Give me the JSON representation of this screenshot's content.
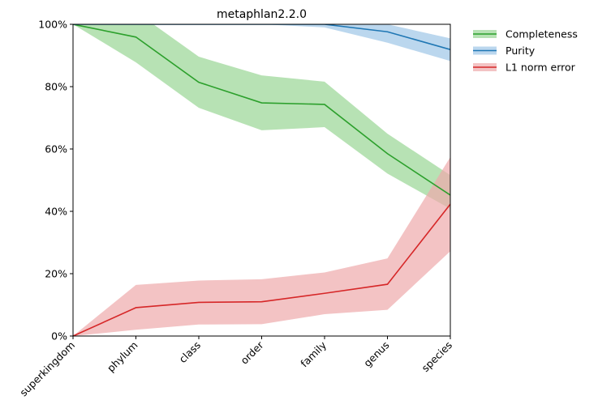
{
  "chart_data": {
    "type": "line",
    "title": "metaphlan2.2.0",
    "xlabel": "",
    "ylabel": "",
    "categories": [
      "superkingdom",
      "phylum",
      "class",
      "order",
      "family",
      "genus",
      "species"
    ],
    "ylim": [
      0,
      100
    ],
    "y_ticks": [
      "0%",
      "20%",
      "40%",
      "60%",
      "80%",
      "100%"
    ],
    "grid": false,
    "legend_placement": "outside right, top",
    "series": [
      {
        "name": "Completeness",
        "color": "#2ca02c",
        "band_color": "#98d594",
        "values": [
          100,
          95.9,
          81.4,
          74.8,
          74.3,
          58.5,
          45.2
        ],
        "upper": [
          100,
          104,
          89.6,
          83.6,
          81.6,
          64.9,
          51.6
        ],
        "lower": [
          100,
          87.8,
          73.2,
          66.0,
          67.0,
          52.1,
          40.8
        ]
      },
      {
        "name": "Purity",
        "color": "#1f77b4",
        "band_color": "#9ec6e7",
        "values": [
          100,
          100,
          100,
          100,
          100,
          97.6,
          91.9
        ],
        "upper": [
          100,
          100,
          100,
          100,
          100,
          100,
          95.5
        ],
        "lower": [
          100,
          100,
          100,
          100,
          99.0,
          94.1,
          88.2
        ]
      },
      {
        "name": "L1 norm error",
        "color": "#d62728",
        "band_color": "#eeaaab",
        "values": [
          0,
          9.1,
          10.8,
          11.0,
          13.7,
          16.6,
          42.3
        ],
        "upper": [
          0,
          16.4,
          17.8,
          18.2,
          20.4,
          24.9,
          57.4
        ],
        "lower": [
          0,
          2.0,
          3.7,
          3.8,
          7.0,
          8.4,
          27.2
        ]
      }
    ]
  }
}
